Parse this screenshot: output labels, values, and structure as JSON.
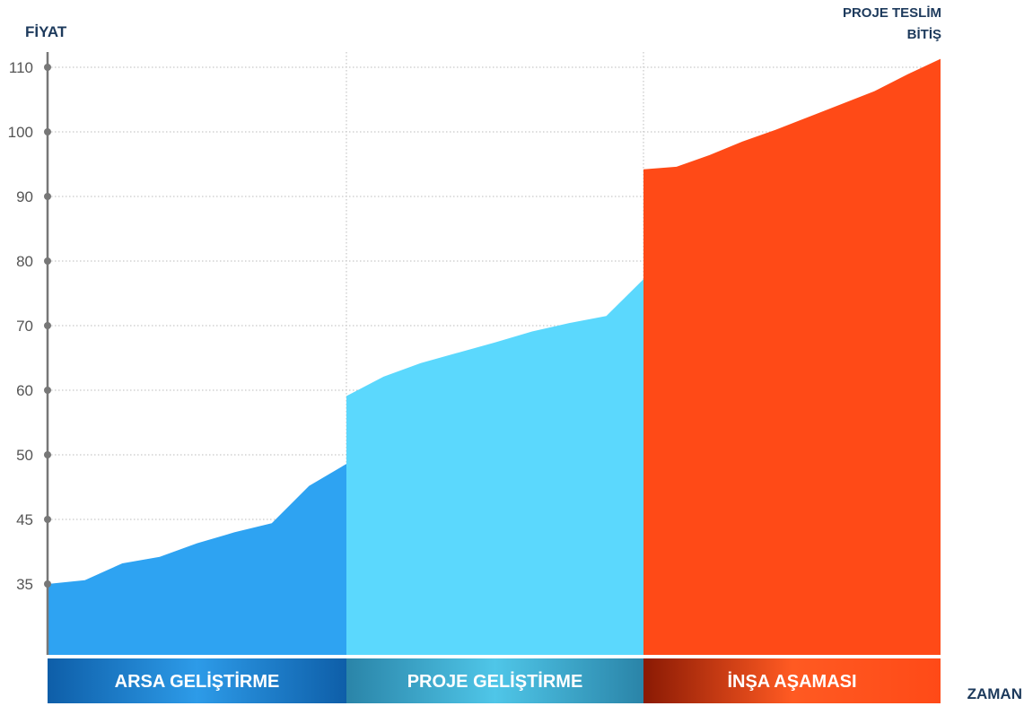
{
  "chart_data": {
    "type": "area",
    "ylabel": "FİYAT",
    "xlabel": "ZAMAN",
    "end_label": [
      "PROJE TESLİM",
      "BİTİŞ"
    ],
    "y_ticks": [
      35,
      45,
      50,
      60,
      70,
      80,
      90,
      100,
      110
    ],
    "ylim": [
      35,
      110
    ],
    "grid": true,
    "colors": {
      "axis": "#777777",
      "grid": "#bbbbbb",
      "text": "#1d3a5c",
      "tick_text": "#555555"
    },
    "series": [
      {
        "name": "ARSA GELİŞTİRME",
        "color": "#2ea3f2",
        "label_gradient": [
          "#0e5ea8",
          "#2d9be8",
          "#0e5ea8"
        ],
        "values": [
          35,
          35.6,
          38.2,
          39.2,
          41.3,
          43.0,
          44.4,
          47.6,
          49.3
        ]
      },
      {
        "name": "PROJE GELİŞTİRME",
        "color": "#5bd8fd",
        "label_gradient": [
          "#2a84a8",
          "#4fc6e8",
          "#2a84a8"
        ],
        "values": [
          59.1,
          62.1,
          64.2,
          65.8,
          67.4,
          69.1,
          70.4,
          71.5,
          77.2
        ]
      },
      {
        "name": "İNŞA AŞAMASI",
        "color": "#ff4a17",
        "label_gradient": [
          "#8a1a04",
          "#ff5a22",
          "#ff4a17"
        ],
        "values": [
          94.2,
          94.6,
          96.4,
          98.5,
          100.3,
          102.3,
          104.3,
          106.3,
          108.9,
          111.3
        ]
      }
    ]
  }
}
